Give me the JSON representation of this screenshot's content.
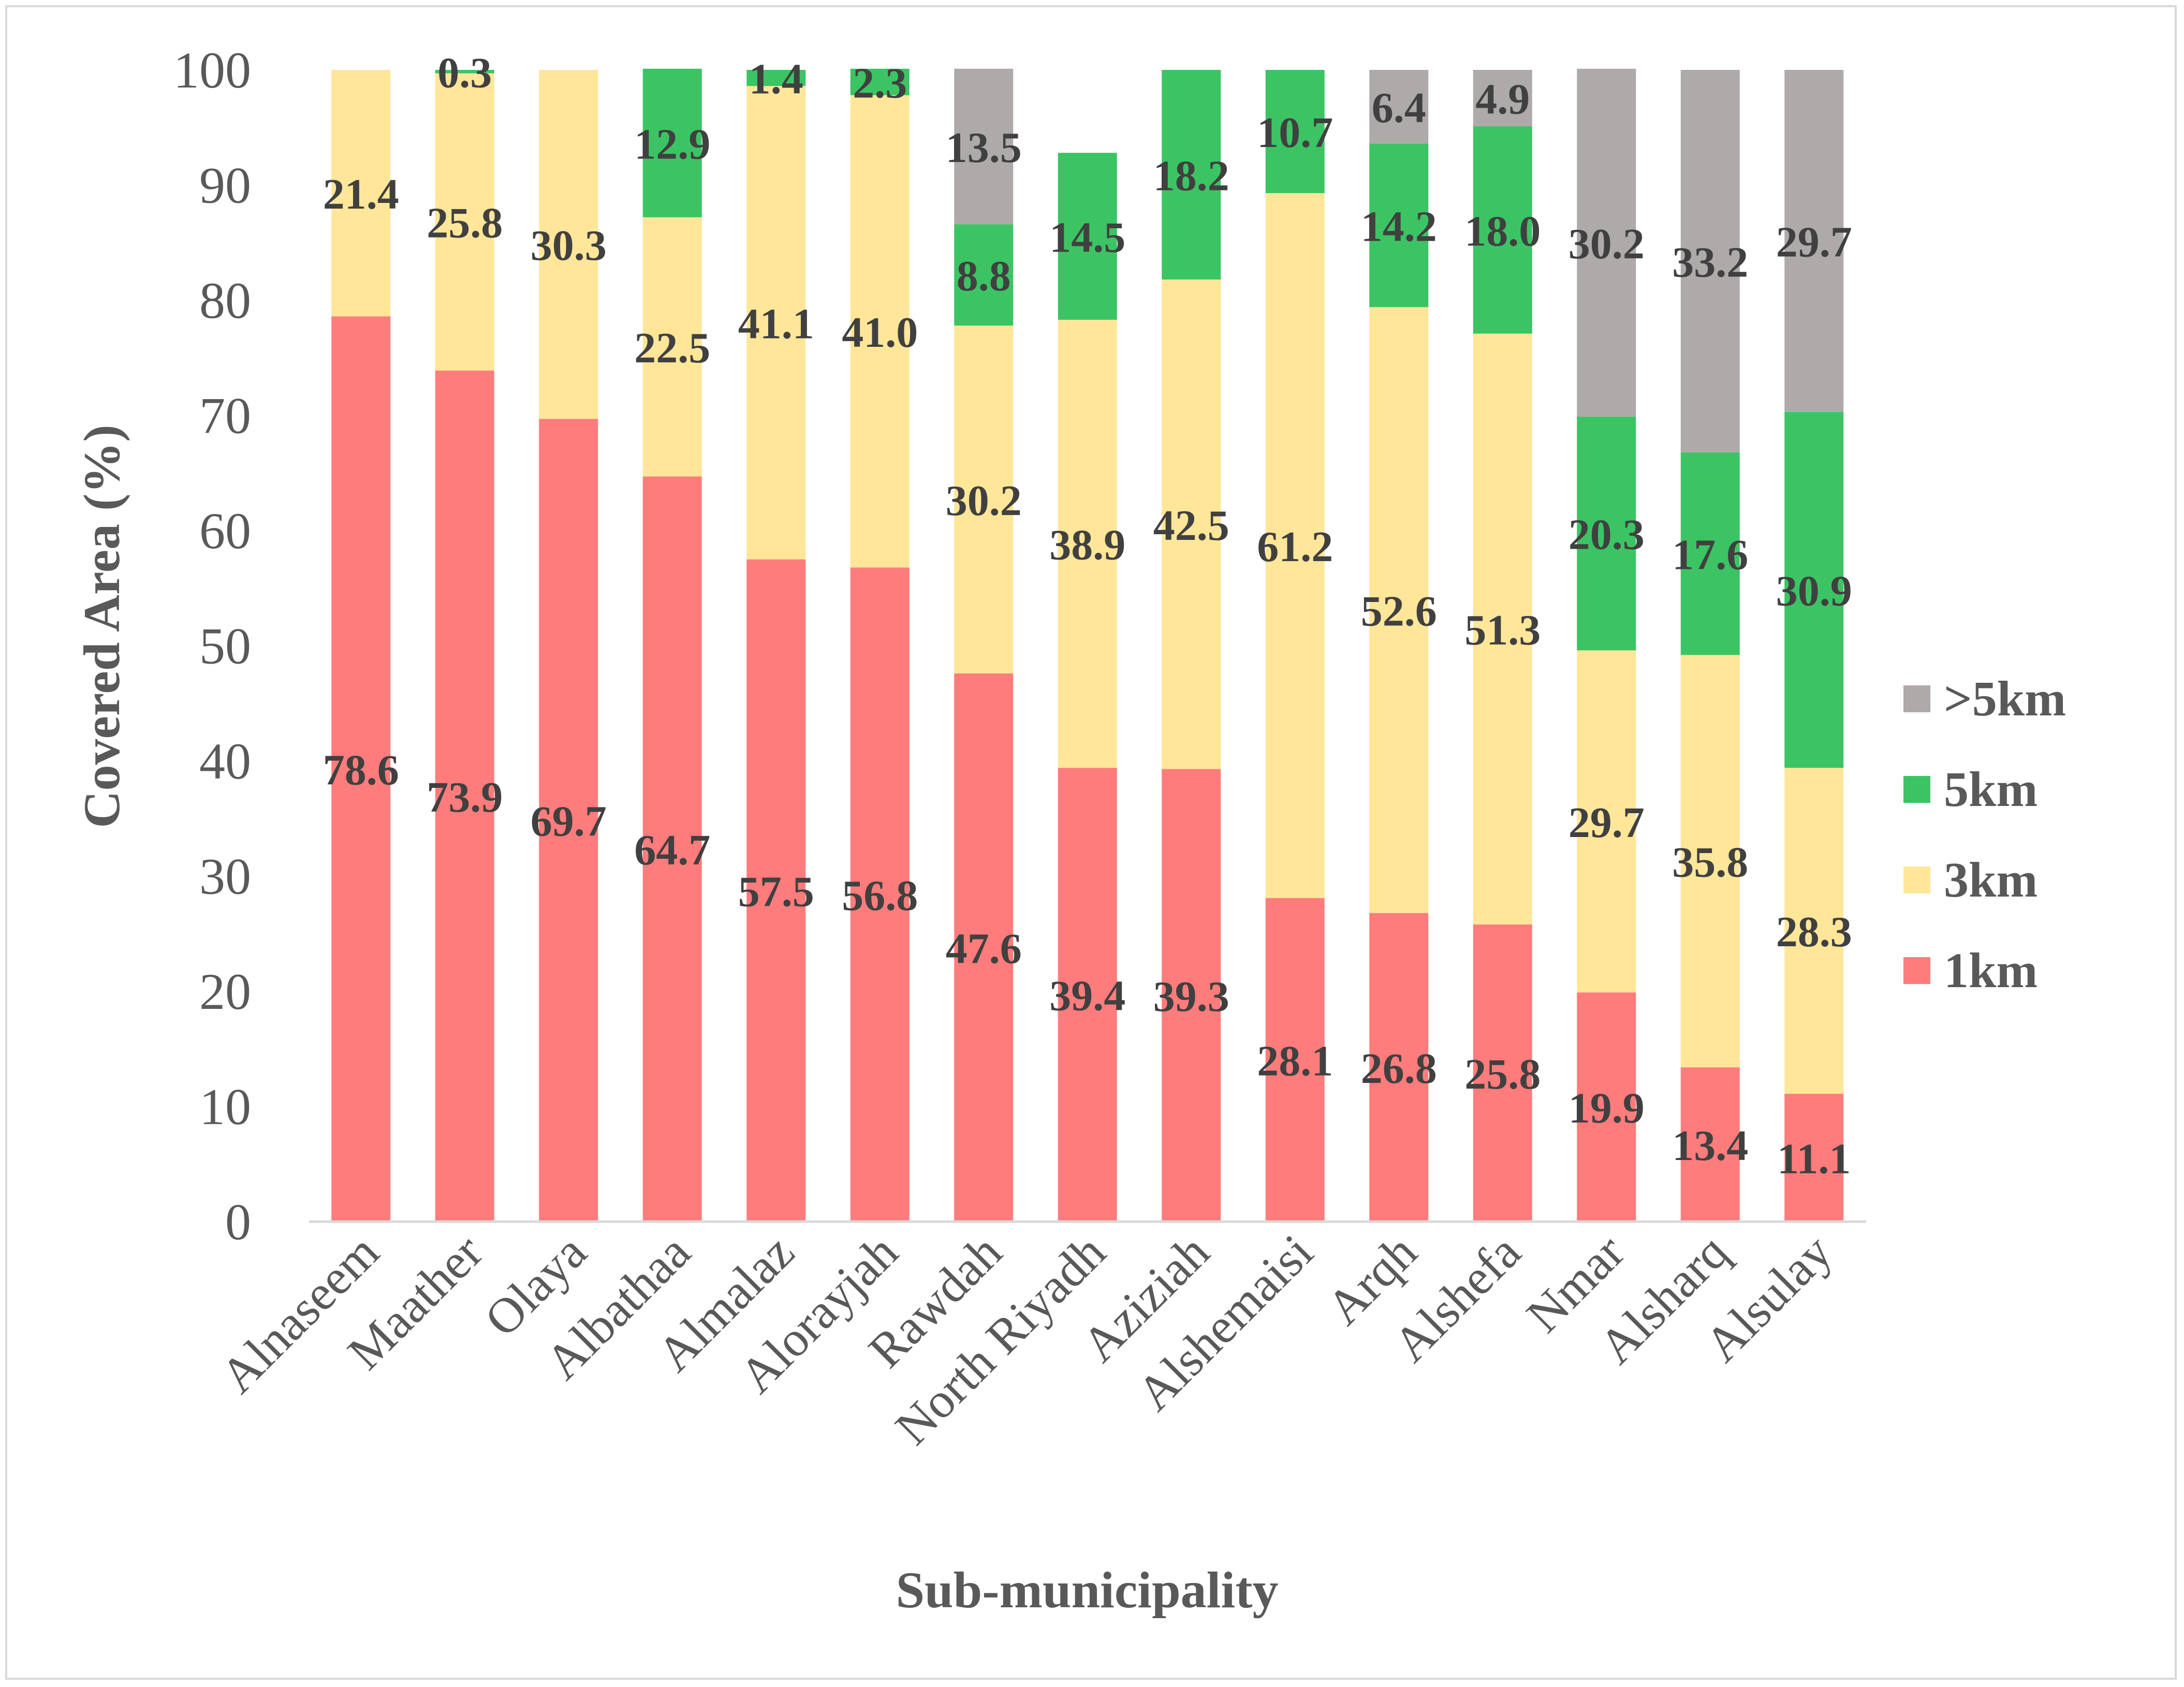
{
  "chart_data": {
    "type": "bar",
    "stacked": true,
    "title": "",
    "xlabel": "Sub-municipality",
    "ylabel": "Covered Area (%)",
    "ylim": [
      0,
      100
    ],
    "yticks": [
      "0",
      "10",
      "20",
      "30",
      "40",
      "50",
      "60",
      "70",
      "80",
      "90",
      "100"
    ],
    "grid": false,
    "legend_position": "right",
    "categories": [
      "Alnaseem",
      "Maather",
      "Olaya",
      "Albathaa",
      "Almalaz",
      "Alorayjah",
      "Rawdah",
      "North Riyadh",
      "Aziziah",
      "Alshemaisi",
      "Arqh",
      "Alshefa",
      "Nmar",
      "Alsharq",
      "Alsulay"
    ],
    "series": [
      {
        "name": "1km",
        "color": "#ff7c7c",
        "values": [
          78.6,
          73.9,
          69.7,
          64.7,
          57.5,
          56.8,
          47.6,
          39.4,
          39.3,
          28.1,
          26.8,
          25.8,
          19.9,
          13.4,
          11.1
        ]
      },
      {
        "name": "3km",
        "color": "#ffe699",
        "values": [
          21.4,
          25.8,
          30.3,
          22.5,
          41.1,
          41.0,
          30.2,
          38.9,
          42.5,
          61.2,
          52.6,
          51.3,
          29.7,
          35.8,
          28.3
        ]
      },
      {
        "name": "5km",
        "color": "#3cc464",
        "values": [
          0,
          0.3,
          0,
          12.9,
          1.4,
          2.3,
          8.8,
          14.5,
          18.2,
          10.7,
          14.2,
          18.0,
          20.3,
          17.6,
          30.9
        ]
      },
      {
        "name": ">5km",
        "color": "#aeaaaa",
        "values": [
          0,
          0,
          0,
          0,
          0,
          0,
          13.5,
          0,
          0,
          0,
          6.4,
          4.9,
          30.2,
          33.2,
          29.7
        ]
      }
    ],
    "labels": [
      [
        "78.6",
        "73.9",
        "69.7",
        "64.7",
        "57.5",
        "56.8",
        "47.6",
        "39.4",
        "39.3",
        "28.1",
        "26.8",
        "25.8",
        "19.9",
        "13.4",
        "11.1"
      ],
      [
        "21.4",
        "25.8",
        "30.3",
        "22.5",
        "41.1",
        "41.0",
        "30.2",
        "38.9",
        "42.5",
        "61.2",
        "52.6",
        "51.3",
        "29.7",
        "35.8",
        "28.3"
      ],
      [
        "",
        "0.3",
        "",
        "12.9",
        "1.4",
        "2.3",
        "8.8",
        "14.5",
        "18.2",
        "10.7",
        "14.2",
        "18.0",
        "20.3",
        "17.6",
        "30.9"
      ],
      [
        "",
        "",
        "",
        "",
        "",
        "",
        "13.5",
        "",
        "",
        "",
        "6.4",
        "4.9",
        "30.2",
        "33.2",
        "29.7"
      ]
    ],
    "legend_order": [
      ">5km",
      "5km",
      "3km",
      "1km"
    ]
  }
}
